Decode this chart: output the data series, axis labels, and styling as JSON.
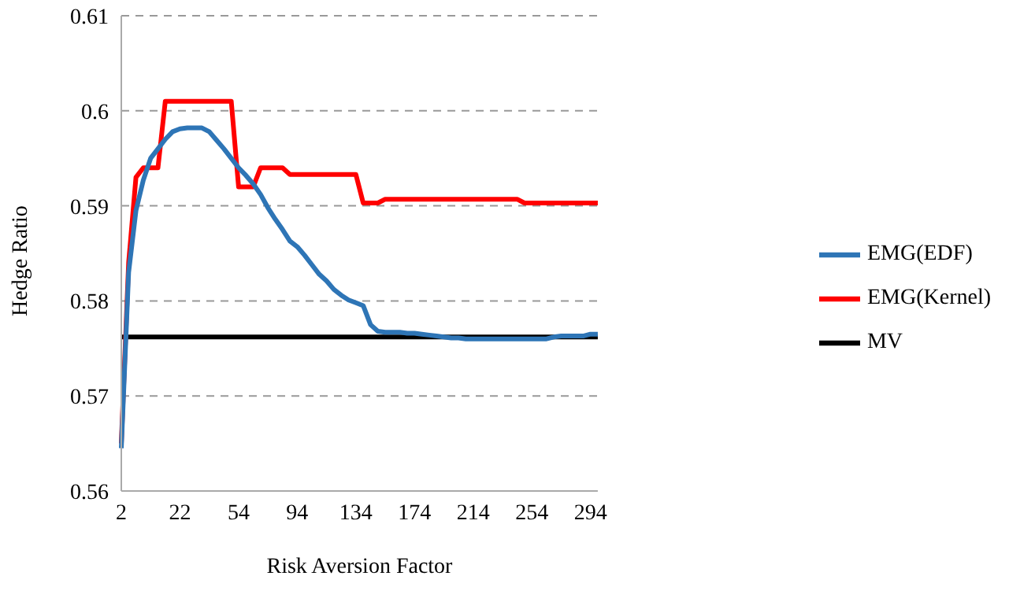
{
  "chart_data": {
    "type": "line",
    "xlabel": "Risk Aversion Factor",
    "ylabel": "Hedge Ratio",
    "categories": [
      "2",
      null,
      null,
      null,
      null,
      null,
      null,
      null,
      "22",
      null,
      null,
      null,
      null,
      null,
      null,
      null,
      "54",
      null,
      null,
      null,
      null,
      null,
      null,
      null,
      "94",
      null,
      null,
      null,
      null,
      null,
      null,
      null,
      "134",
      null,
      null,
      null,
      null,
      null,
      null,
      null,
      "174",
      null,
      null,
      null,
      null,
      null,
      null,
      null,
      "214",
      null,
      null,
      null,
      null,
      null,
      null,
      null,
      "254",
      null,
      null,
      null,
      null,
      null,
      null,
      null,
      "294",
      null
    ],
    "series": [
      {
        "name": "MV",
        "color": "#000000",
        "values": [
          0.5762,
          0.5762,
          0.5762,
          0.5762,
          0.5762,
          0.5762,
          0.5762,
          0.5762,
          0.5762,
          0.5762,
          0.5762,
          0.5762,
          0.5762,
          0.5762,
          0.5762,
          0.5762,
          0.5762,
          0.5762,
          0.5762,
          0.5762,
          0.5762,
          0.5762,
          0.5762,
          0.5762,
          0.5762,
          0.5762,
          0.5762,
          0.5762,
          0.5762,
          0.5762,
          0.5762,
          0.5762,
          0.5762,
          0.5762,
          0.5762,
          0.5762,
          0.5762,
          0.5762,
          0.5762,
          0.5762,
          0.5762,
          0.5762,
          0.5762,
          0.5762,
          0.5762,
          0.5762,
          0.5762,
          0.5762,
          0.5762,
          0.5762,
          0.5762,
          0.5762,
          0.5762,
          0.5762,
          0.5762,
          0.5762,
          0.5762,
          0.5762,
          0.5762,
          0.5762,
          0.5762,
          0.5762,
          0.5762,
          0.5762,
          0.5762,
          0.5762
        ]
      },
      {
        "name": "EMG(Kernel)",
        "color": "#ff0000",
        "values": [
          0.565,
          0.584,
          0.593,
          0.594,
          0.594,
          0.594,
          0.601,
          0.601,
          0.601,
          0.601,
          0.601,
          0.601,
          0.601,
          0.601,
          0.601,
          0.601,
          0.592,
          0.592,
          0.592,
          0.594,
          0.594,
          0.594,
          0.594,
          0.5933,
          0.5933,
          0.5933,
          0.5933,
          0.5933,
          0.5933,
          0.5933,
          0.5933,
          0.5933,
          0.5933,
          0.5903,
          0.5903,
          0.5903,
          0.5907,
          0.5907,
          0.5907,
          0.5907,
          0.5907,
          0.5907,
          0.5907,
          0.5907,
          0.5907,
          0.5907,
          0.5907,
          0.5907,
          0.5907,
          0.5907,
          0.5907,
          0.5907,
          0.5907,
          0.5907,
          0.5907,
          0.5903,
          0.5903,
          0.5903,
          0.5903,
          0.5903,
          0.5903,
          0.5903,
          0.5903,
          0.5903,
          0.5903,
          0.5903
        ]
      },
      {
        "name": "EMG(EDF)",
        "color": "#2e75b6",
        "values": [
          0.5645,
          0.583,
          0.5895,
          0.5927,
          0.595,
          0.596,
          0.597,
          0.5978,
          0.5981,
          0.5982,
          0.5982,
          0.5982,
          0.5978,
          0.5969,
          0.596,
          0.595,
          0.594,
          0.5932,
          0.5923,
          0.5912,
          0.5898,
          0.5886,
          0.5875,
          0.5863,
          0.5857,
          0.5848,
          0.5838,
          0.5828,
          0.5821,
          0.5812,
          0.5806,
          0.5801,
          0.5798,
          0.5795,
          0.5775,
          0.5768,
          0.5767,
          0.5767,
          0.5767,
          0.5766,
          0.5766,
          0.5765,
          0.5764,
          0.5763,
          0.5762,
          0.5761,
          0.5761,
          0.576,
          0.576,
          0.576,
          0.576,
          0.576,
          0.576,
          0.576,
          0.576,
          0.576,
          0.576,
          0.576,
          0.576,
          0.5762,
          0.5763,
          0.5763,
          0.5763,
          0.5763,
          0.5765,
          0.5765
        ]
      }
    ],
    "ylim": [
      0.56,
      0.61
    ],
    "yticks": [
      0.56,
      0.57,
      0.58,
      0.59,
      0.6,
      0.61
    ],
    "grid": "y",
    "legend": "right",
    "marker": "none",
    "line_style": "solid"
  }
}
